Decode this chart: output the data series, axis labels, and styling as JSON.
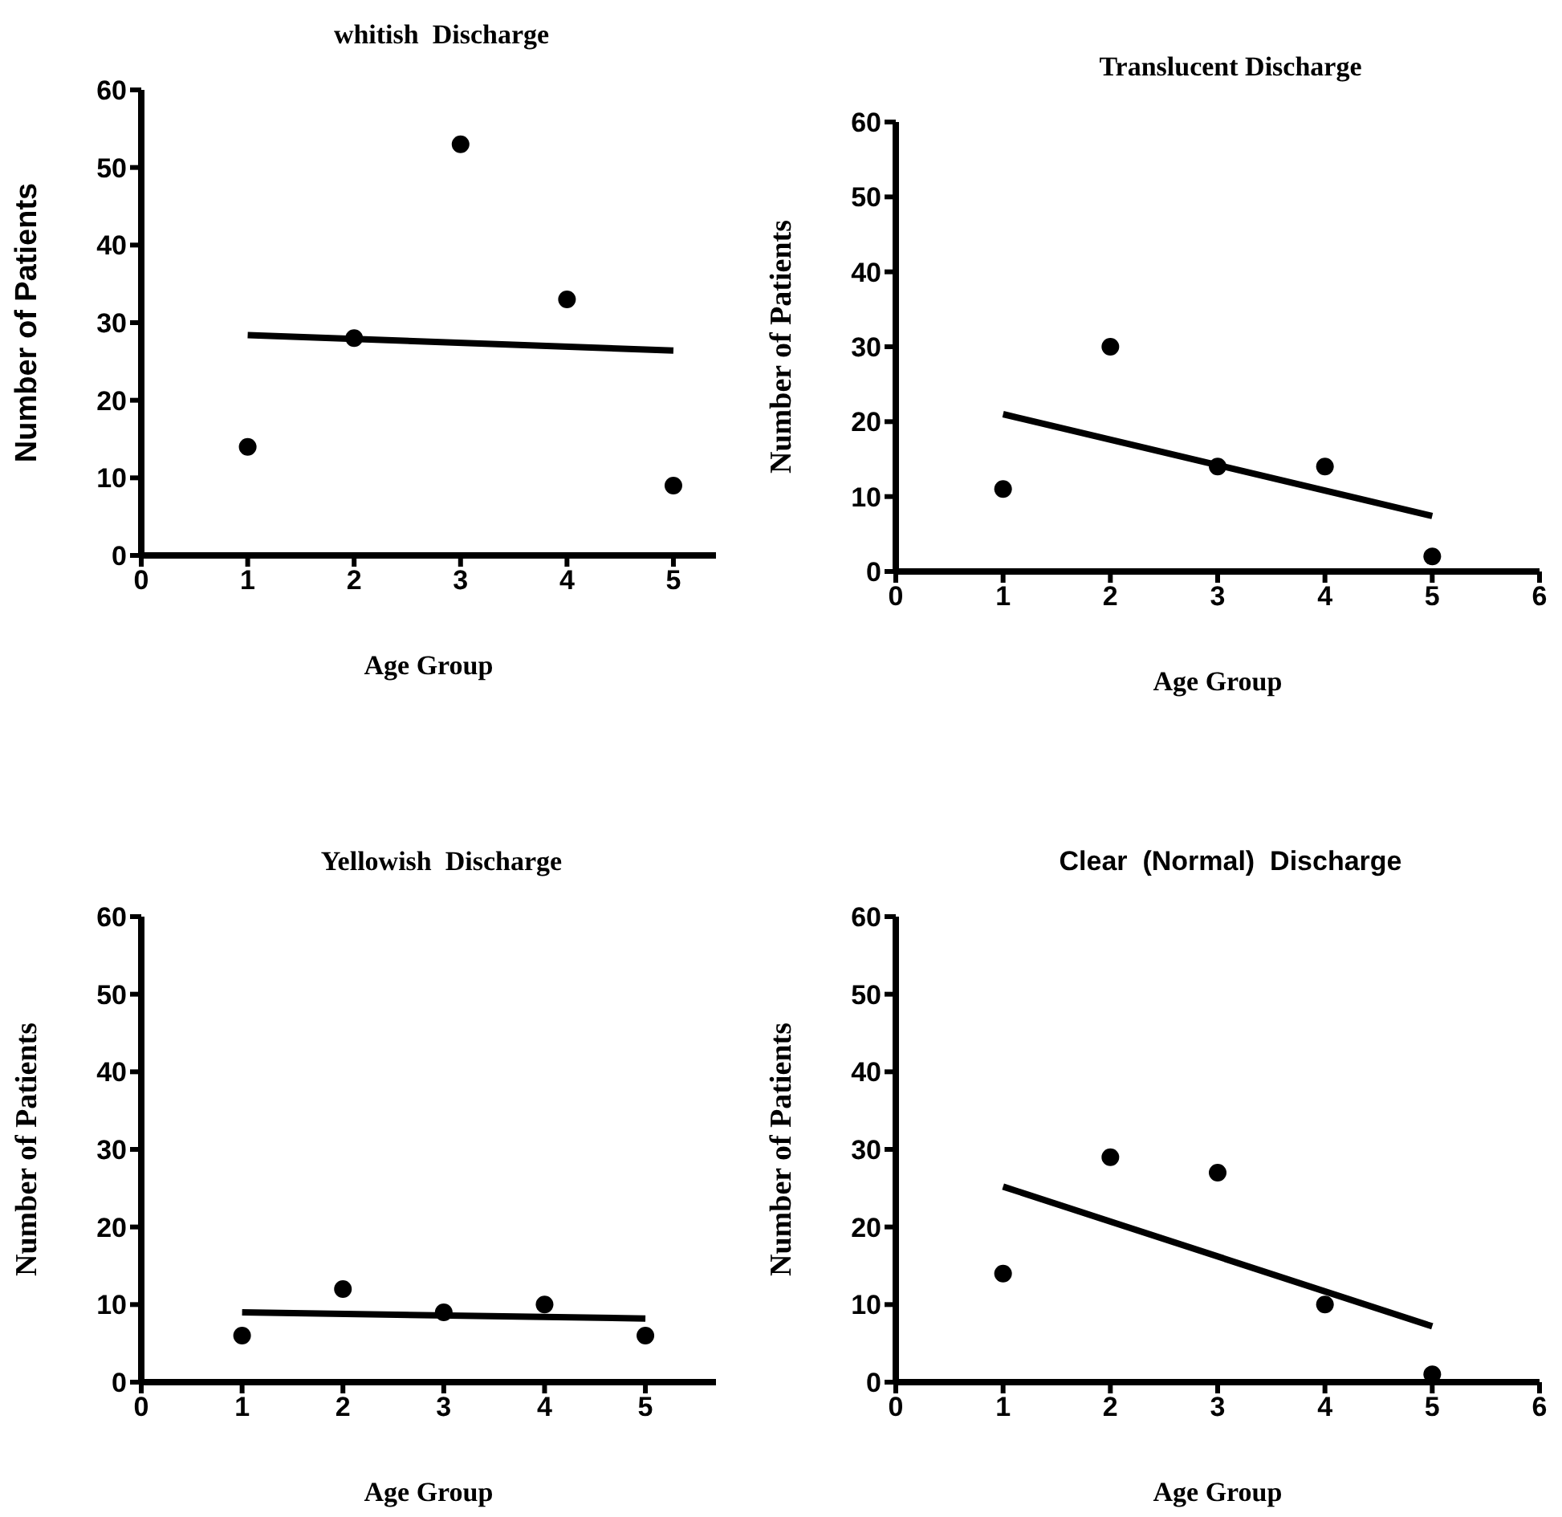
{
  "chart_data": [
    {
      "type": "scatter",
      "title": "whitish  Discharge",
      "xlabel": "Age  Group",
      "ylabel": "Number of Patients",
      "xlim": [
        0,
        5.4
      ],
      "xticks": [
        0,
        1,
        2,
        3,
        4,
        5
      ],
      "ylim": [
        0,
        60
      ],
      "yticks": [
        0,
        10,
        20,
        30,
        40,
        50,
        60
      ],
      "marker": "circle",
      "series": [
        {
          "color": "#000000",
          "x": [
            1,
            2,
            3,
            4,
            5
          ],
          "values": [
            14,
            28,
            53,
            33,
            9
          ]
        },
        {
          "type": "line",
          "color": "#000000",
          "marker": "none",
          "line_style": "solid",
          "x": [
            1,
            5
          ],
          "values": [
            28.4,
            26.4
          ]
        }
      ]
    },
    {
      "type": "scatter",
      "title": "Translucent Discharge",
      "xlabel": "Age Group",
      "ylabel": "Number of Patients",
      "xlim": [
        0,
        6
      ],
      "xticks": [
        0,
        1,
        2,
        3,
        4,
        5,
        6
      ],
      "ylim": [
        0,
        60
      ],
      "yticks": [
        0,
        10,
        20,
        30,
        40,
        50,
        60
      ],
      "marker": "circle",
      "series": [
        {
          "color": "#000000",
          "x": [
            1,
            2,
            3,
            4,
            5
          ],
          "values": [
            11,
            30,
            14,
            14,
            2
          ]
        },
        {
          "type": "line",
          "color": "#000000",
          "marker": "none",
          "line_style": "solid",
          "x": [
            1,
            5
          ],
          "values": [
            21.0,
            7.4
          ]
        }
      ]
    },
    {
      "type": "scatter",
      "title": "Yellowish  Discharge",
      "xlabel": "Age  Group",
      "ylabel": "Number of Patients",
      "xlim": [
        0,
        5.7
      ],
      "xticks": [
        0,
        1,
        2,
        3,
        4,
        5
      ],
      "ylim": [
        0,
        60
      ],
      "yticks": [
        0,
        10,
        20,
        30,
        40,
        50,
        60
      ],
      "marker": "circle",
      "series": [
        {
          "color": "#000000",
          "x": [
            1,
            2,
            3,
            4,
            5
          ],
          "values": [
            6,
            12,
            9,
            10,
            6
          ]
        },
        {
          "type": "line",
          "color": "#000000",
          "marker": "none",
          "line_style": "solid",
          "x": [
            1,
            5
          ],
          "values": [
            9.0,
            8.2
          ]
        }
      ]
    },
    {
      "type": "scatter",
      "title": "Clear  (Normal)  Discharge",
      "xlabel": "Age  Group",
      "ylabel": "Number of Patients",
      "xlim": [
        0,
        6
      ],
      "xticks": [
        0,
        1,
        2,
        3,
        4,
        5,
        6
      ],
      "ylim": [
        0,
        60
      ],
      "yticks": [
        0,
        10,
        20,
        30,
        40,
        50,
        60
      ],
      "marker": "circle",
      "series": [
        {
          "color": "#000000",
          "x": [
            1,
            2,
            3,
            4,
            5
          ],
          "values": [
            14,
            29,
            27,
            10,
            1
          ]
        },
        {
          "type": "line",
          "color": "#000000",
          "marker": "none",
          "line_style": "solid",
          "x": [
            1,
            5
          ],
          "values": [
            25.2,
            7.2
          ]
        }
      ]
    }
  ]
}
